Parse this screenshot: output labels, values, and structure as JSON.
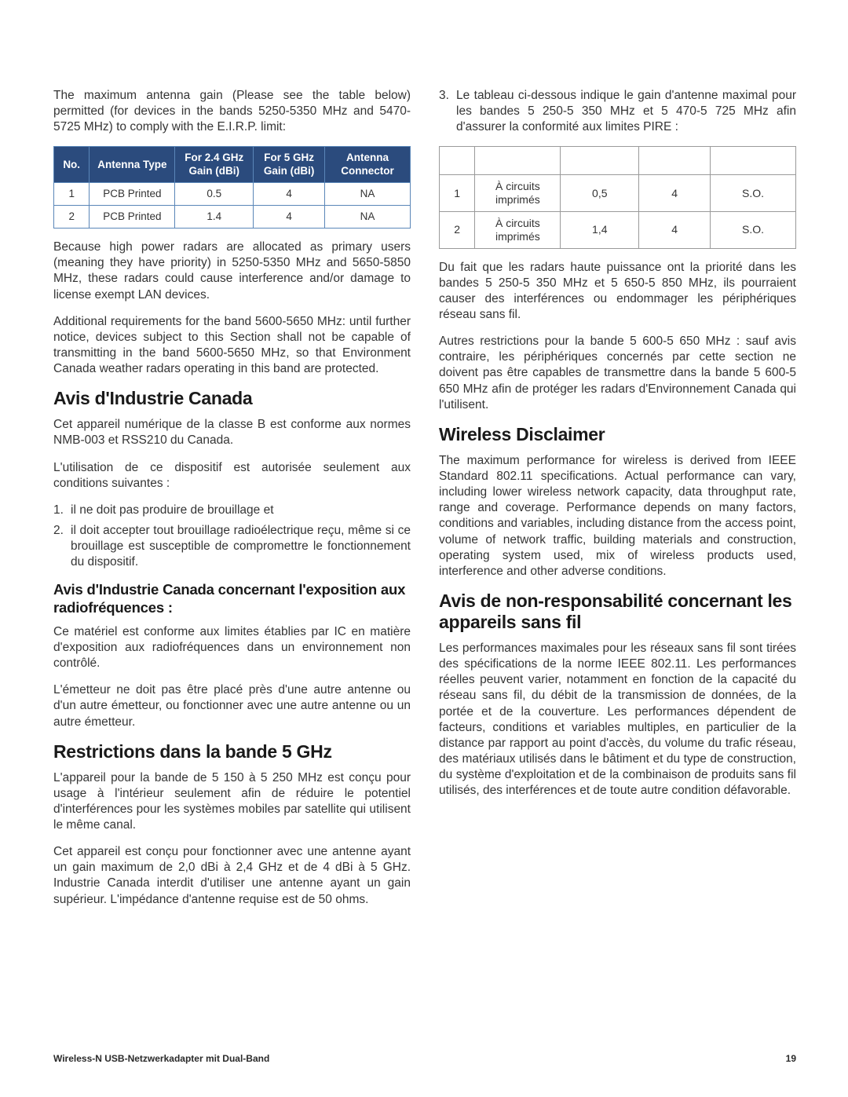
{
  "colors": {
    "table1_header_bg": "#2b4b7d",
    "table1_border": "#5a86b8",
    "table2_border": "#9a9a9a",
    "text": "#353535",
    "heading": "#1a1a1a"
  },
  "left": {
    "p1": "The maximum antenna gain (Please see the table below) permitted (for devices in the bands 5250-5350 MHz and 5470-5725 MHz) to comply with the E.I.R.P. limit:",
    "table1": {
      "col_widths": [
        "10%",
        "24%",
        "22%",
        "20%",
        "24%"
      ],
      "headers": [
        "No.",
        "Antenna Type",
        "For 2.4 GHz Gain (dBi)",
        "For 5 GHz Gain (dBi)",
        "Antenna Connector"
      ],
      "rows": [
        [
          "1",
          "PCB Printed",
          "0.5",
          "4",
          "NA"
        ],
        [
          "2",
          "PCB Printed",
          "1.4",
          "4",
          "NA"
        ]
      ]
    },
    "p2": "Because high power radars are allocated as primary users (meaning they have priority) in 5250-5350 MHz and 5650-5850 MHz, these radars could cause interference and/or damage to license exempt LAN devices.",
    "p3": "Additional requirements for the band 5600-5650 MHz: until further notice, devices subject to this Section shall not be capable of transmitting in the band 5600-5650 MHz, so that Environment Canada weather radars operating in this band are protected.",
    "h1": "Avis d'Industrie Canada",
    "p4": "Cet appareil numérique de la classe B est conforme aux normes NMB-003 et RSS210 du Canada.",
    "p5": "L'utilisation de ce dispositif est autorisée seulement aux conditions suivantes :",
    "list1": [
      {
        "num": "1.",
        "text": "il ne doit pas produire de brouillage et"
      },
      {
        "num": "2.",
        "text": "il doit accepter tout brouillage radioélectrique reçu, même si ce brouillage est susceptible de compromettre le fonctionnement du dispositif."
      }
    ],
    "h2": "Avis d'Industrie Canada concernant l'exposition aux radiofréquences :",
    "p6": "Ce matériel est conforme aux limites établies par IC en matière d'exposition aux radiofréquences dans un environnement non contrôlé.",
    "p7": "L'émetteur ne doit pas être placé près d'une autre antenne ou d'un autre émetteur, ou fonctionner avec une autre antenne ou un autre émetteur.",
    "h3": "Restrictions dans la bande 5 GHz",
    "p8": "L'appareil pour la bande de 5 150 à 5 250 MHz est conçu pour usage à l'intérieur seulement afin de réduire le potentiel d'interférences pour les systèmes mobiles par satellite qui utilisent le même canal.",
    "p9": "Cet appareil est conçu pour fonctionner avec une antenne ayant un gain maximum de 2,0 dBi à 2,4 GHz et de 4 dBi à 5 GHz. Industrie Canada interdit d'utiliser une antenne ayant un gain supérieur. L'impédance d'antenne requise est de 50 ohms."
  },
  "right": {
    "list2": [
      {
        "num": "3.",
        "text": "Le tableau ci-dessous indique le gain d'antenne maximal pour les bandes 5 250-5 350 MHz et 5 470-5 725 MHz afin d'assurer la conformité aux limites PIRE :"
      }
    ],
    "table2": {
      "col_widths": [
        "10%",
        "24%",
        "22%",
        "20%",
        "24%"
      ],
      "headers": [
        "",
        "",
        "",
        "",
        ""
      ],
      "rows": [
        [
          "1",
          "À circuits imprimés",
          "0,5",
          "4",
          "S.O."
        ],
        [
          "2",
          "À circuits imprimés",
          "1,4",
          "4",
          "S.O."
        ]
      ]
    },
    "p1": "Du fait que les radars haute puissance ont la priorité dans les bandes 5 250-5 350 MHz et 5 650-5 850 MHz, ils pourraient causer des interférences ou endommager les périphériques réseau sans fil.",
    "p2": "Autres restrictions pour la bande 5 600-5 650 MHz : sauf avis contraire, les périphériques concernés par cette section ne doivent pas être capables de transmettre dans la bande 5 600-5 650 MHz afin de protéger les radars d'Environnement Canada qui l'utilisent.",
    "h1": "Wireless Disclaimer",
    "p3": "The maximum performance for wireless is derived from IEEE Standard 802.11 specifications. Actual performance can vary, including lower wireless network capacity, data throughput rate, range and coverage. Performance depends on many factors, conditions and variables, including distance from the access point, volume of network traffic, building materials and construction, operating system used, mix of wireless products used, interference and other adverse conditions.",
    "h2": "Avis de non-responsabilité concernant les appareils sans fil",
    "p4": "Les performances maximales pour les réseaux sans fil sont tirées des spécifications de la norme IEEE 802.11. Les performances réelles peuvent varier, notamment en fonction de la capacité du réseau sans fil, du débit de la transmission de données, de la portée et de la couverture. Les performances dépendent de facteurs, conditions et variables multiples, en particulier de la distance par rapport au point d'accès, du volume du trafic réseau, des matériaux utilisés dans le bâtiment et du type de construction, du système d'exploitation et de la combinaison de produits sans fil utilisés, des interférences et de toute autre condition défavorable."
  },
  "footer": {
    "product": "Wireless-N USB-Netzwerkadapter mit Dual-Band",
    "page": "19"
  }
}
